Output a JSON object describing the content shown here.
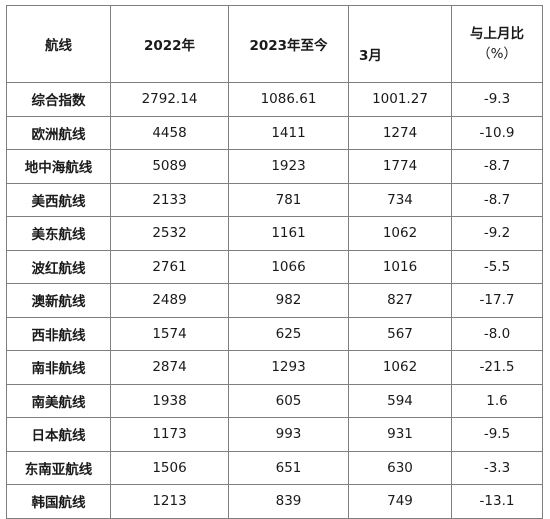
{
  "headers": {
    "route": "航线",
    "y2022": "2022年",
    "y2023": "2023年至今",
    "month": "3月",
    "change_line1": "与上月比",
    "change_line2": "（%）"
  },
  "rows": [
    {
      "route": "综合指数",
      "y2022": "2792.14",
      "y2023": "1086.61",
      "month": "1001.27",
      "change": "-9.3"
    },
    {
      "route": "欧洲航线",
      "y2022": "4458",
      "y2023": "1411",
      "month": "1274",
      "change": "-10.9"
    },
    {
      "route": "地中海航线",
      "y2022": "5089",
      "y2023": "1923",
      "month": "1774",
      "change": "-8.7"
    },
    {
      "route": "美西航线",
      "y2022": "2133",
      "y2023": "781",
      "month": "734",
      "change": "-8.7"
    },
    {
      "route": "美东航线",
      "y2022": "2532",
      "y2023": "1161",
      "month": "1062",
      "change": "-9.2"
    },
    {
      "route": "波红航线",
      "y2022": "2761",
      "y2023": "1066",
      "month": "1016",
      "change": "-5.5"
    },
    {
      "route": "澳新航线",
      "y2022": "2489",
      "y2023": "982",
      "month": "827",
      "change": "-17.7"
    },
    {
      "route": "西非航线",
      "y2022": "1574",
      "y2023": "625",
      "month": "567",
      "change": "-8.0"
    },
    {
      "route": "南非航线",
      "y2022": "2874",
      "y2023": "1293",
      "month": "1062",
      "change": "-21.5"
    },
    {
      "route": "南美航线",
      "y2022": "1938",
      "y2023": "605",
      "month": "594",
      "change": "1.6"
    },
    {
      "route": "日本航线",
      "y2022": "1173",
      "y2023": "993",
      "month": "931",
      "change": "-9.5"
    },
    {
      "route": "东南亚航线",
      "y2022": "1506",
      "y2023": "651",
      "month": "630",
      "change": "-3.3"
    },
    {
      "route": "韩国航线",
      "y2022": "1213",
      "y2023": "839",
      "month": "749",
      "change": "-13.1"
    }
  ]
}
